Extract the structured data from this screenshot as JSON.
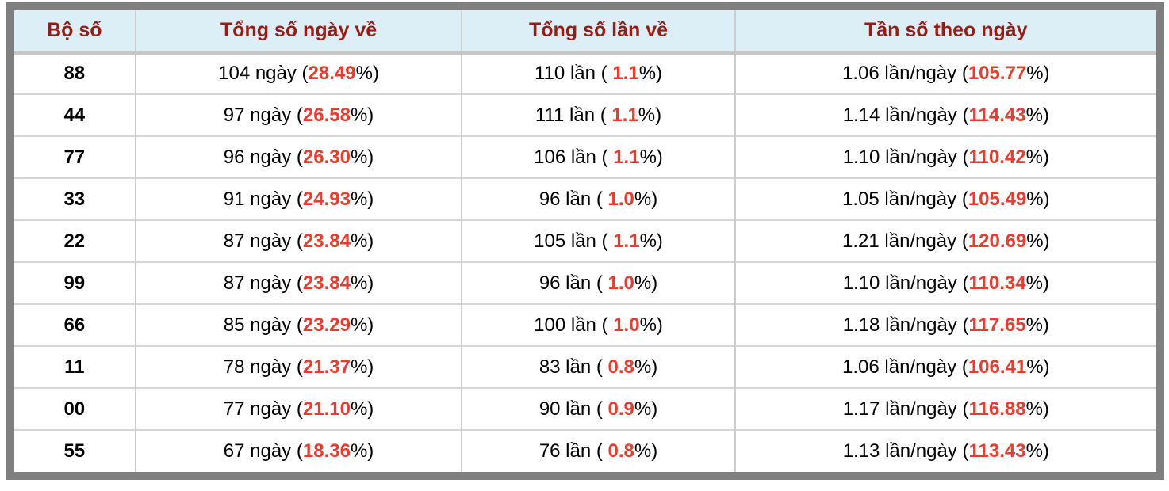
{
  "table": {
    "columns": [
      "Bộ số",
      "Tổng số ngày về",
      "Tổng số lần về",
      "Tần số theo ngày"
    ],
    "rows": [
      {
        "code": "88",
        "days_prefix": "104 ngày (",
        "days_red": "28.49",
        "days_suffix": "%)",
        "times_prefix": "110 lần ( ",
        "times_red": "1.1",
        "times_suffix": "%)",
        "freq_prefix": "1.06 lần/ngày (",
        "freq_red": "105.77",
        "freq_suffix": "%)"
      },
      {
        "code": "44",
        "days_prefix": "97 ngày (",
        "days_red": "26.58",
        "days_suffix": "%)",
        "times_prefix": "111 lần ( ",
        "times_red": "1.1",
        "times_suffix": "%)",
        "freq_prefix": "1.14 lần/ngày (",
        "freq_red": "114.43",
        "freq_suffix": "%)"
      },
      {
        "code": "77",
        "days_prefix": "96 ngày (",
        "days_red": "26.30",
        "days_suffix": "%)",
        "times_prefix": "106 lần ( ",
        "times_red": "1.1",
        "times_suffix": "%)",
        "freq_prefix": "1.10 lần/ngày (",
        "freq_red": "110.42",
        "freq_suffix": "%)"
      },
      {
        "code": "33",
        "days_prefix": "91 ngày (",
        "days_red": "24.93",
        "days_suffix": "%)",
        "times_prefix": "96 lần ( ",
        "times_red": "1.0",
        "times_suffix": "%)",
        "freq_prefix": "1.05 lần/ngày (",
        "freq_red": "105.49",
        "freq_suffix": "%)"
      },
      {
        "code": "22",
        "days_prefix": "87 ngày (",
        "days_red": "23.84",
        "days_suffix": "%)",
        "times_prefix": "105 lần ( ",
        "times_red": "1.1",
        "times_suffix": "%)",
        "freq_prefix": "1.21 lần/ngày (",
        "freq_red": "120.69",
        "freq_suffix": "%)"
      },
      {
        "code": "99",
        "days_prefix": "87 ngày (",
        "days_red": "23.84",
        "days_suffix": "%)",
        "times_prefix": "96 lần ( ",
        "times_red": "1.0",
        "times_suffix": "%)",
        "freq_prefix": "1.10 lần/ngày (",
        "freq_red": "110.34",
        "freq_suffix": "%)"
      },
      {
        "code": "66",
        "days_prefix": "85 ngày (",
        "days_red": "23.29",
        "days_suffix": "%)",
        "times_prefix": "100 lần ( ",
        "times_red": "1.0",
        "times_suffix": "%)",
        "freq_prefix": "1.18 lần/ngày (",
        "freq_red": "117.65",
        "freq_suffix": "%)"
      },
      {
        "code": "11",
        "days_prefix": "78 ngày (",
        "days_red": "21.37",
        "days_suffix": "%)",
        "times_prefix": "83 lần ( ",
        "times_red": "0.8",
        "times_suffix": "%)",
        "freq_prefix": "1.06 lần/ngày (",
        "freq_red": "106.41",
        "freq_suffix": "%)"
      },
      {
        "code": "00",
        "days_prefix": "77 ngày (",
        "days_red": "21.10",
        "days_suffix": "%)",
        "times_prefix": "90 lần ( ",
        "times_red": "0.9",
        "times_suffix": "%)",
        "freq_prefix": "1.17 lần/ngày (",
        "freq_red": "116.88",
        "freq_suffix": "%)"
      },
      {
        "code": "55",
        "days_prefix": "67 ngày (",
        "days_red": "18.36",
        "days_suffix": "%)",
        "times_prefix": "76 lần ( ",
        "times_red": "0.8",
        "times_suffix": "%)",
        "freq_prefix": "1.13 lần/ngày (",
        "freq_red": "113.43",
        "freq_suffix": "%)"
      }
    ]
  },
  "colors": {
    "header_bg": "#dceef6",
    "header_text": "#9b1b13",
    "highlight_red": "#ee392b",
    "frame_border": "#7f7f7f"
  }
}
